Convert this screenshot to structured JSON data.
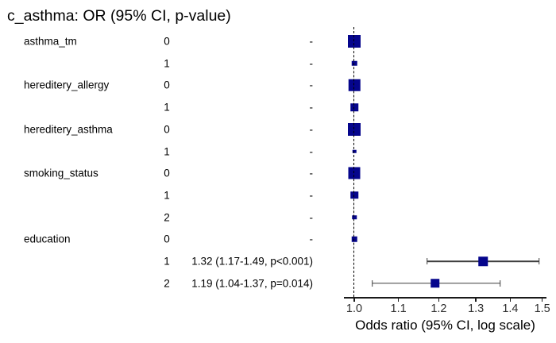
{
  "title": "c_asthma: OR (95% CI, p-value)",
  "colors": {
    "marker": "#05058C",
    "ci_line": "#3D3D3D",
    "axis": "#1A1A1A",
    "reference_line": "#000000",
    "background": "#FFFFFF"
  },
  "chart_data": {
    "type": "forest",
    "title": "c_asthma: OR (95% CI, p-value)",
    "xlabel": "Odds ratio (95% CI, log scale)",
    "x_scale": "log",
    "x_ticks": [
      1.0,
      1.1,
      1.2,
      1.3,
      1.4,
      1.5
    ],
    "x_tick_labels": [
      "1.0",
      "1.1",
      "1.2",
      "1.3",
      "1.4",
      "1.5"
    ],
    "xlim": [
      1.0,
      1.5
    ],
    "reference_line_x": 1.0,
    "legend": null,
    "grid": false,
    "rows": [
      {
        "variable": "asthma_tm",
        "level": "0",
        "estimate_label": "-",
        "or": 1.0,
        "ci_low": null,
        "ci_high": null,
        "p_value": null,
        "reference": true,
        "marker_size": 16
      },
      {
        "variable": "",
        "level": "1",
        "estimate_label": "-",
        "or": 1.0,
        "ci_low": null,
        "ci_high": null,
        "p_value": null,
        "reference": true,
        "marker_size": 6.5
      },
      {
        "variable": "hereditery_allergy",
        "level": "0",
        "estimate_label": "-",
        "or": 1.0,
        "ci_low": null,
        "ci_high": null,
        "p_value": null,
        "reference": true,
        "marker_size": 14.5
      },
      {
        "variable": "",
        "level": "1",
        "estimate_label": "-",
        "or": 1.0,
        "ci_low": null,
        "ci_high": null,
        "p_value": null,
        "reference": true,
        "marker_size": 9.5
      },
      {
        "variable": "hereditery_asthma",
        "level": "0",
        "estimate_label": "-",
        "or": 1.0,
        "ci_low": null,
        "ci_high": null,
        "p_value": null,
        "reference": true,
        "marker_size": 16
      },
      {
        "variable": "",
        "level": "1",
        "estimate_label": "-",
        "or": 1.0,
        "ci_low": null,
        "ci_high": null,
        "p_value": null,
        "reference": true,
        "marker_size": 4.5
      },
      {
        "variable": "smoking_status",
        "level": "0",
        "estimate_label": "-",
        "or": 1.0,
        "ci_low": null,
        "ci_high": null,
        "p_value": null,
        "reference": true,
        "marker_size": 15
      },
      {
        "variable": "",
        "level": "1",
        "estimate_label": "-",
        "or": 1.0,
        "ci_low": null,
        "ci_high": null,
        "p_value": null,
        "reference": true,
        "marker_size": 9.5
      },
      {
        "variable": "",
        "level": "2",
        "estimate_label": "-",
        "or": 1.0,
        "ci_low": null,
        "ci_high": null,
        "p_value": null,
        "reference": true,
        "marker_size": 5.5
      },
      {
        "variable": "education",
        "level": "0",
        "estimate_label": "-",
        "or": 1.0,
        "ci_low": null,
        "ci_high": null,
        "p_value": null,
        "reference": true,
        "marker_size": 6.5
      },
      {
        "variable": "",
        "level": "1",
        "estimate_label": "1.32 (1.17-1.49, p<0.001)",
        "or": 1.32,
        "ci_low": 1.17,
        "ci_high": 1.49,
        "p_value": "<0.001",
        "reference": false,
        "marker_size": 11.5
      },
      {
        "variable": "",
        "level": "2",
        "estimate_label": "1.19 (1.04-1.37, p=0.014)",
        "or": 1.19,
        "ci_low": 1.04,
        "ci_high": 1.37,
        "p_value": "=0.014",
        "reference": false,
        "marker_size": 11.5
      }
    ]
  }
}
